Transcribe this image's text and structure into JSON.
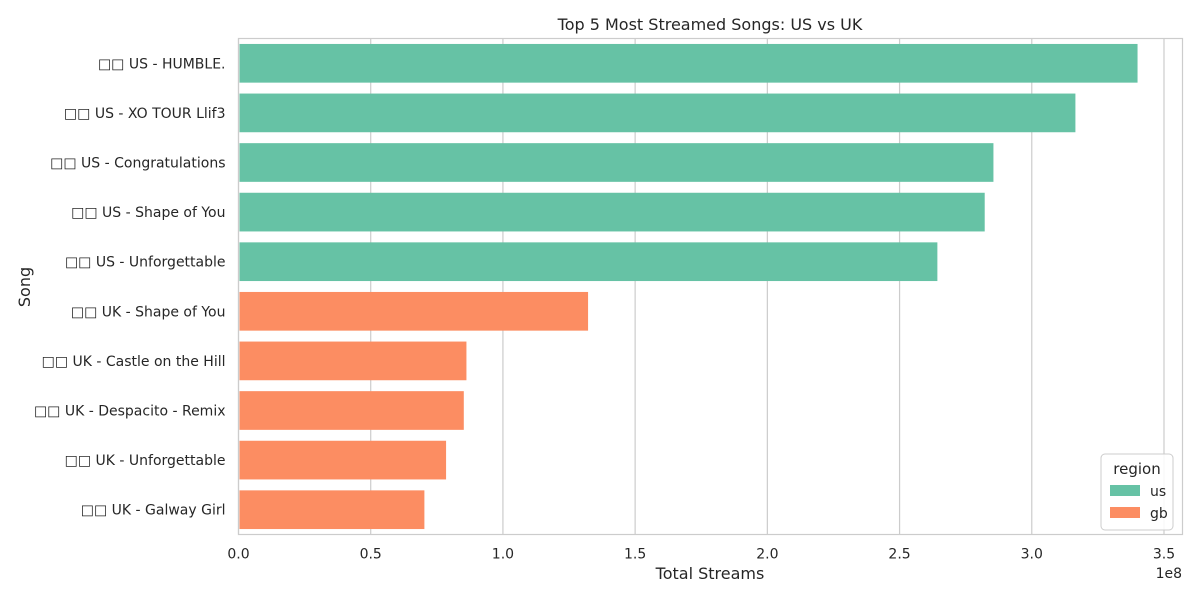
{
  "chart_data": {
    "type": "bar",
    "orientation": "horizontal",
    "title": "Top 5 Most Streamed Songs: US vs UK",
    "xlabel": "Total Streams",
    "ylabel": "Song",
    "x_offset_label": "1e8",
    "xlim": [
      0,
      3.57
    ],
    "xticks": [
      "0.0",
      "0.5",
      "1.0",
      "1.5",
      "2.0",
      "2.5",
      "3.0",
      "3.5"
    ],
    "grid": "x",
    "categories": [
      "□□ US - HUMBLE.",
      "□□ US - XO TOUR Llif3",
      "□□ US - Congratulations",
      "□□ US - Shape of You",
      "□□ US - Unforgettable",
      "□□ UK - Shape of You",
      "□□ UK - Castle on the Hill",
      "□□ UK - Despacito - Remix",
      "□□ UK - Unforgettable",
      "□□ UK - Galway Girl"
    ],
    "values": [
      3.4,
      3.165,
      2.855,
      2.822,
      2.643,
      1.322,
      0.862,
      0.852,
      0.785,
      0.703
    ],
    "value_scale": "1e8",
    "region": [
      "us",
      "us",
      "us",
      "us",
      "us",
      "gb",
      "gb",
      "gb",
      "gb",
      "gb"
    ],
    "legend": {
      "title": "region",
      "position": "lower-right",
      "entries": [
        {
          "label": "us",
          "color": "#66c2a5"
        },
        {
          "label": "gb",
          "color": "#fc8d62"
        }
      ]
    },
    "colors": {
      "us": "#66c2a5",
      "gb": "#fc8d62",
      "grid": "#cccccc",
      "spine": "#cccccc"
    }
  }
}
